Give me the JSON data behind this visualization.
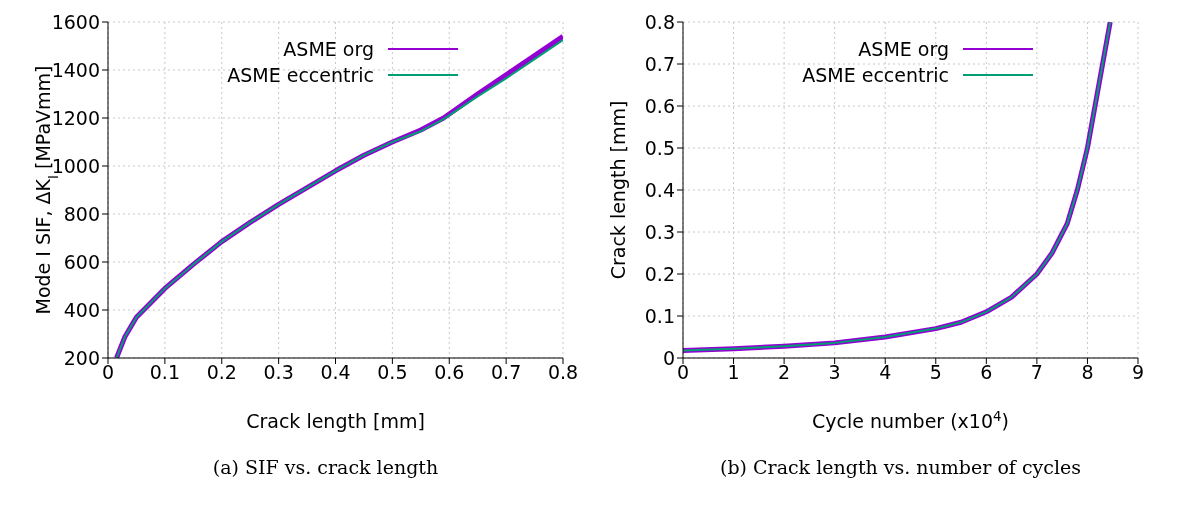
{
  "chart_data": [
    {
      "type": "line",
      "xlabel": "Crack length [mm]",
      "ylabel": "Mode I SIF, ΔK$_{I}$ [MPaVmm]",
      "annotations": [
        "(a) SIF vs. crack length"
      ],
      "xlim": [
        0,
        0.8
      ],
      "xticks": [
        0,
        0.1,
        0.2,
        0.3,
        0.4,
        0.5,
        0.6,
        0.7,
        0.8
      ],
      "ylim": [
        200,
        1600
      ],
      "yticks": [
        200,
        400,
        600,
        800,
        1000,
        1200,
        1400,
        1600
      ],
      "grid": true,
      "legend": "top",
      "line_style": "solid",
      "marker": "none",
      "series": [
        {
          "name": "ASME org",
          "color": "#9400d3",
          "x": [
            0.015,
            0.03,
            0.05,
            0.1,
            0.15,
            0.2,
            0.25,
            0.3,
            0.35,
            0.4,
            0.45,
            0.5,
            0.55,
            0.59,
            0.65,
            0.7,
            0.75,
            0.8
          ],
          "values": [
            200,
            290,
            370,
            490,
            590,
            685,
            765,
            840,
            910,
            980,
            1045,
            1100,
            1150,
            1200,
            1300,
            1380,
            1460,
            1540
          ]
        },
        {
          "name": "ASME eccentric",
          "color": "#009e73",
          "x": [
            0.015,
            0.03,
            0.05,
            0.1,
            0.15,
            0.2,
            0.25,
            0.3,
            0.35,
            0.4,
            0.45,
            0.5,
            0.55,
            0.59,
            0.65,
            0.7,
            0.75,
            0.8
          ],
          "values": [
            200,
            290,
            370,
            490,
            590,
            685,
            765,
            840,
            910,
            980,
            1045,
            1100,
            1145,
            1195,
            1290,
            1365,
            1445,
            1525
          ]
        }
      ]
    },
    {
      "type": "line",
      "xlabel": "Cycle number (x10$^{4}$)",
      "ylabel": "Crack length [mm]",
      "annotations": [
        "(b) Crack length vs. number of cycles"
      ],
      "xlim": [
        0,
        9
      ],
      "xticks": [
        0,
        1,
        2,
        3,
        4,
        5,
        6,
        7,
        8,
        9
      ],
      "ylim": [
        0,
        0.8
      ],
      "yticks": [
        0,
        0.1,
        0.2,
        0.3,
        0.4,
        0.5,
        0.6,
        0.7,
        0.8
      ],
      "grid": true,
      "legend": "top",
      "line_style": "solid",
      "marker": "none",
      "series": [
        {
          "name": "ASME org",
          "color": "#9400d3",
          "x": [
            0,
            1,
            2,
            3,
            4,
            5,
            5.5,
            6,
            6.5,
            7,
            7.3,
            7.6,
            7.8,
            8,
            8.15,
            8.3,
            8.45
          ],
          "values": [
            0.018,
            0.022,
            0.028,
            0.036,
            0.05,
            0.07,
            0.085,
            0.11,
            0.145,
            0.2,
            0.25,
            0.32,
            0.4,
            0.5,
            0.6,
            0.7,
            0.8
          ]
        },
        {
          "name": "ASME eccentric",
          "color": "#009e73",
          "x": [
            0,
            1,
            2,
            3,
            4,
            5,
            5.5,
            6,
            6.5,
            7,
            7.3,
            7.6,
            7.8,
            8,
            8.15,
            8.3,
            8.45
          ],
          "values": [
            0.018,
            0.022,
            0.028,
            0.036,
            0.05,
            0.07,
            0.085,
            0.11,
            0.145,
            0.2,
            0.25,
            0.32,
            0.4,
            0.5,
            0.6,
            0.7,
            0.8
          ]
        }
      ]
    }
  ]
}
